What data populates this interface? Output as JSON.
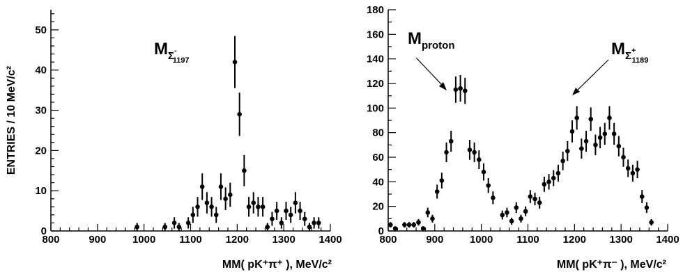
{
  "chart_data": [
    {
      "type": "scatter",
      "title": "",
      "xlabel": "MM( pK⁺π⁺ ), MeV/c²",
      "ylabel": "ENTRIES / 10 MeV/c²",
      "xlim": [
        800,
        1400
      ],
      "ylim": [
        0,
        55
      ],
      "x_ticks": [
        "800",
        "900",
        "1000",
        "1100",
        "1200",
        "1300",
        "1400"
      ],
      "y_ticks": [
        "0",
        "10",
        "20",
        "30",
        "40",
        "50"
      ],
      "error_bars": true,
      "annotations": [
        {
          "main": "M",
          "sub": "Σ",
          "subsup": "-",
          "subsub": "1197"
        }
      ],
      "series": [
        {
          "x": [
            985,
            1045,
            1065,
            1075,
            1095,
            1105,
            1115,
            1125,
            1135,
            1145,
            1155,
            1165,
            1175,
            1185,
            1195,
            1205,
            1215,
            1225,
            1235,
            1245,
            1255,
            1265,
            1275,
            1285,
            1295,
            1305,
            1315,
            1325,
            1335,
            1345,
            1355,
            1365,
            1375
          ],
          "y": [
            1,
            1,
            2,
            1,
            2,
            4,
            6,
            11,
            7,
            6,
            4,
            11,
            8,
            9,
            42,
            29,
            15,
            6,
            7,
            6,
            6,
            1,
            3,
            5,
            2,
            5,
            4,
            7,
            5,
            3,
            1,
            2,
            2
          ]
        }
      ]
    },
    {
      "type": "scatter",
      "title": "",
      "xlabel": "MM( pK⁺π⁻ ), MeV/c²",
      "ylabel": "",
      "xlim": [
        800,
        1400
      ],
      "ylim": [
        0,
        180
      ],
      "x_ticks": [
        "800",
        "900",
        "1000",
        "1100",
        "1200",
        "1300",
        "1400"
      ],
      "y_ticks": [
        "0",
        "20",
        "40",
        "60",
        "80",
        "100",
        "120",
        "140",
        "160",
        "180"
      ],
      "error_bars": true,
      "annotations": [
        {
          "main": "M",
          "sub": "proton"
        },
        {
          "main": "M",
          "sub": "Σ",
          "subsup": "+",
          "subsub": "1189"
        }
      ],
      "series": [
        {
          "x": [
            805,
            815,
            835,
            845,
            855,
            865,
            875,
            885,
            895,
            905,
            915,
            925,
            935,
            945,
            955,
            965,
            975,
            985,
            995,
            1005,
            1015,
            1025,
            1045,
            1055,
            1065,
            1075,
            1085,
            1095,
            1105,
            1115,
            1125,
            1135,
            1145,
            1155,
            1165,
            1175,
            1185,
            1195,
            1205,
            1215,
            1225,
            1235,
            1245,
            1255,
            1265,
            1275,
            1285,
            1295,
            1305,
            1315,
            1325,
            1335,
            1345,
            1355,
            1365
          ],
          "y": [
            5,
            2,
            5,
            5,
            5,
            7,
            2,
            15,
            10,
            32,
            41,
            64,
            73,
            115,
            116,
            114,
            66,
            64,
            58,
            48,
            37,
            27,
            13,
            15,
            8,
            19,
            10,
            16,
            28,
            26,
            23,
            38,
            40,
            43,
            47,
            57,
            65,
            81,
            92,
            67,
            73,
            91,
            70,
            76,
            79,
            92,
            79,
            69,
            60,
            51,
            47,
            50,
            28,
            19,
            7
          ]
        }
      ]
    }
  ]
}
